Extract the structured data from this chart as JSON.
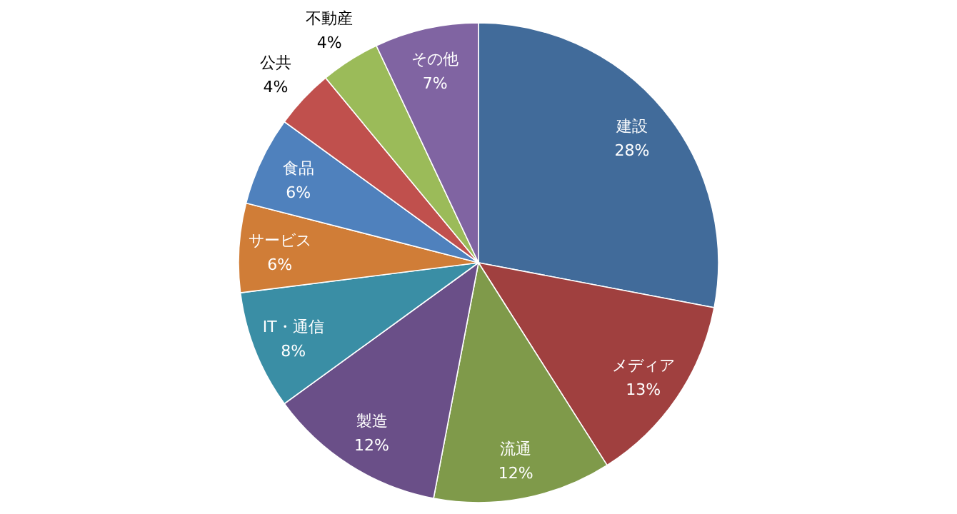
{
  "chart_data": {
    "type": "pie",
    "categories": [
      "建設",
      "メディア",
      "流通",
      "製造",
      "IT・通信",
      "サービス",
      "食品",
      "公共",
      "不動産",
      "その他"
    ],
    "values": [
      28,
      13,
      12,
      12,
      8,
      6,
      6,
      4,
      4,
      7
    ],
    "value_labels": [
      "28%",
      "13%",
      "12%",
      "12%",
      "8%",
      "6%",
      "6%",
      "4%",
      "4%",
      "7%"
    ],
    "colors": [
      "#416b9a",
      "#a0403f",
      "#7f9a4a",
      "#6a4f88",
      "#3a8ea5",
      "#d07d37",
      "#4f81bd",
      "#c0504d",
      "#9bbb59",
      "#8064a2"
    ],
    "legend": false
  }
}
